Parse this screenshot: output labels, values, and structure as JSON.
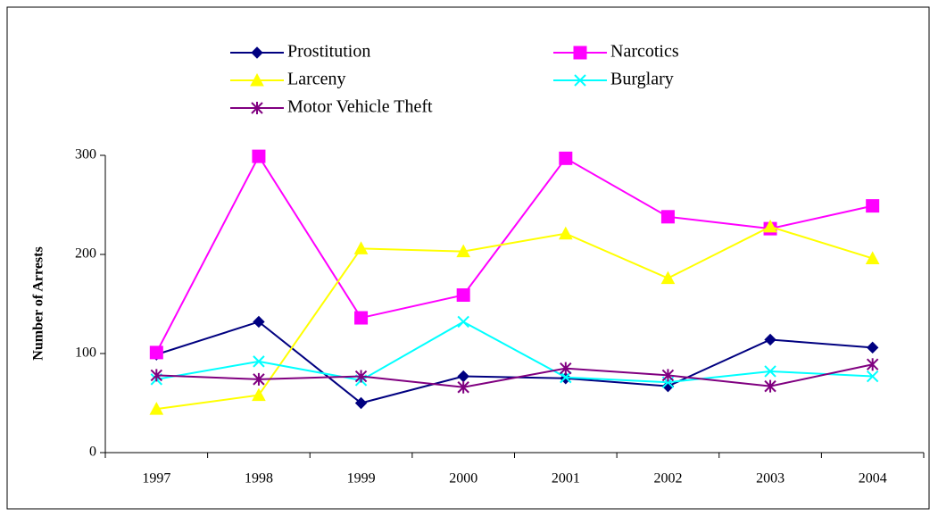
{
  "chart_data": {
    "type": "line",
    "y_label": "Number of Arrests",
    "categories": [
      "1997",
      "1998",
      "1999",
      "2000",
      "2001",
      "2002",
      "2003",
      "2004"
    ],
    "ylim": [
      0,
      300
    ],
    "yticks": [
      0,
      100,
      200,
      300
    ],
    "grid": false,
    "series": [
      {
        "name": "Prostitution",
        "color": "#000080",
        "marker": "diamond",
        "values": [
          99,
          132,
          50,
          77,
          75,
          67,
          114,
          106
        ]
      },
      {
        "name": "Narcotics",
        "color": "#ff00ff",
        "marker": "square",
        "values": [
          101,
          299,
          136,
          159,
          297,
          238,
          226,
          249
        ]
      },
      {
        "name": "Larceny",
        "color": "#ffff00",
        "marker": "triangle",
        "values": [
          44,
          58,
          206,
          203,
          221,
          176,
          228,
          196
        ]
      },
      {
        "name": "Burglary",
        "color": "#00ffff",
        "marker": "x",
        "values": [
          74,
          92,
          73,
          132,
          76,
          71,
          82,
          77
        ]
      },
      {
        "name": "Motor Vehicle Theft",
        "color": "#800080",
        "marker": "star",
        "values": [
          78,
          74,
          77,
          66,
          85,
          78,
          67,
          89
        ]
      }
    ]
  }
}
